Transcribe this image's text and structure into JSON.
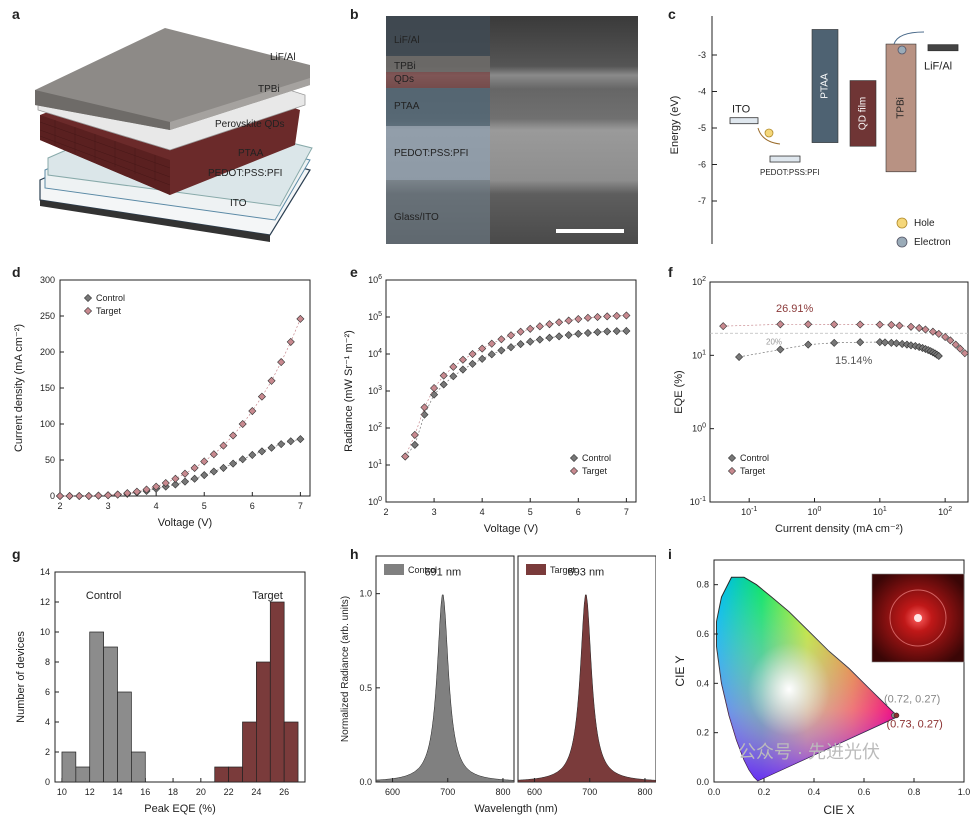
{
  "panel_letters": [
    "a",
    "b",
    "c",
    "d",
    "e",
    "f",
    "g",
    "h",
    "i"
  ],
  "panel_a": {
    "layers": [
      "LiF/Al",
      "TPBi",
      "Perovskite QDs",
      "PTAA",
      "PEDOT:PSS:PFI",
      "ITO"
    ],
    "colors": {
      "lif": "#8d8a87",
      "tpbi": "#e6e6e6",
      "perovskite": "#6b2a2a",
      "ptaa": "#dde8ea",
      "pedot": "#eef2f3",
      "ito": "#ffffff"
    }
  },
  "panel_b": {
    "layers": [
      "LiF/Al",
      "TPBi",
      "QDs",
      "PTAA",
      "PEDOT:PSS:PFI",
      "Glass/ITO"
    ]
  },
  "panel_c": {
    "ylabel": "Energy (eV)",
    "yticks": [
      "-3",
      "-4",
      "-5",
      "-6",
      "-7"
    ],
    "levels": [
      {
        "name": "ITO",
        "top": -4.8,
        "bottom": -4.8,
        "color": "#dfe7ee"
      },
      {
        "name": "PEDOT:PSS:PFI",
        "top": -5.85,
        "bottom": -5.85,
        "color": "#dfe7ee"
      },
      {
        "name": "PTAA",
        "top": -2.3,
        "bottom": -5.4,
        "color": "#4e6272"
      },
      {
        "name": "QD film",
        "top": -3.7,
        "bottom": -5.5,
        "color": "#6f3535"
      },
      {
        "name": "TPBi",
        "top": -2.7,
        "bottom": -6.2,
        "color": "#b89283"
      },
      {
        "name": "LiF/Al",
        "top": -2.8,
        "bottom": -2.8,
        "color": "#444444"
      }
    ],
    "legend": [
      {
        "label": "Hole",
        "color": "#f5d77a"
      },
      {
        "label": "Electron",
        "color": "#9aabb8"
      }
    ]
  },
  "panel_d": {
    "chart_data": {
      "type": "scatter",
      "xlabel": "Voltage (V)",
      "ylabel": "Current density (mA cm⁻²)",
      "xlim": [
        2,
        7.2
      ],
      "ylim": [
        0,
        300
      ],
      "xticks": [
        2,
        3,
        4,
        5,
        6,
        7
      ],
      "yticks": [
        0,
        50,
        100,
        150,
        200,
        250,
        300
      ],
      "series": [
        {
          "name": "Control",
          "color": "#777777",
          "x": [
            2.0,
            2.2,
            2.4,
            2.6,
            2.8,
            3.0,
            3.2,
            3.4,
            3.6,
            3.8,
            4.0,
            4.2,
            4.4,
            4.6,
            4.8,
            5.0,
            5.2,
            5.4,
            5.6,
            5.8,
            6.0,
            6.2,
            6.4,
            6.6,
            6.8,
            7.0
          ],
          "y": [
            0,
            0,
            0,
            0,
            0.5,
            1,
            2,
            3,
            5,
            7,
            10,
            13,
            16,
            20,
            24,
            29,
            34,
            39,
            45,
            51,
            57,
            62,
            67,
            72,
            76,
            79
          ]
        },
        {
          "name": "Target",
          "color": "#c8898f",
          "x": [
            2.0,
            2.2,
            2.4,
            2.6,
            2.8,
            3.0,
            3.2,
            3.4,
            3.6,
            3.8,
            4.0,
            4.2,
            4.4,
            4.6,
            4.8,
            5.0,
            5.2,
            5.4,
            5.6,
            5.8,
            6.0,
            6.2,
            6.4,
            6.6,
            6.8,
            7.0
          ],
          "y": [
            0,
            0,
            0,
            0,
            0.5,
            1,
            2,
            4,
            6,
            9,
            13,
            18,
            24,
            31,
            39,
            48,
            58,
            70,
            84,
            100,
            118,
            138,
            160,
            186,
            214,
            246
          ]
        }
      ]
    }
  },
  "panel_e": {
    "chart_data": {
      "type": "scatter",
      "xlabel": "Voltage (V)",
      "ylabel": "Radiance (mW Sr⁻¹ m⁻²)",
      "xlim": [
        2,
        7.2
      ],
      "ylim_log10": [
        0,
        6
      ],
      "yscale": "log",
      "xticks": [
        2,
        3,
        4,
        5,
        6,
        7
      ],
      "series": [
        {
          "name": "Control",
          "color": "#777777",
          "x": [
            2.4,
            2.6,
            2.8,
            3.0,
            3.2,
            3.4,
            3.6,
            3.8,
            4.0,
            4.2,
            4.4,
            4.6,
            4.8,
            5.0,
            5.2,
            5.4,
            5.6,
            5.8,
            6.0,
            6.2,
            6.4,
            6.6,
            6.8,
            7.0
          ],
          "y": [
            17,
            35,
            230,
            800,
            1500,
            2500,
            3800,
            5400,
            7400,
            9800,
            12500,
            15300,
            18500,
            21500,
            24500,
            27500,
            30000,
            32500,
            35000,
            37000,
            39000,
            40500,
            41500,
            42000
          ]
        },
        {
          "name": "Target",
          "color": "#c8898f",
          "x": [
            2.4,
            2.6,
            2.8,
            3.0,
            3.2,
            3.4,
            3.6,
            3.8,
            4.0,
            4.2,
            4.4,
            4.6,
            4.8,
            5.0,
            5.2,
            5.4,
            5.6,
            5.8,
            6.0,
            6.2,
            6.4,
            6.6,
            6.8,
            7.0
          ],
          "y": [
            17,
            65,
            360,
            1200,
            2600,
            4500,
            7000,
            10000,
            14000,
            19000,
            25000,
            32000,
            40000,
            48000,
            56000,
            64000,
            72000,
            80000,
            88000,
            95000,
            100000,
            104000,
            107000,
            110000
          ]
        }
      ]
    }
  },
  "panel_f": {
    "chart_data": {
      "type": "scatter",
      "xlabel": "Current density (mA cm⁻²)",
      "ylabel": "EQE (%)",
      "xscale": "log",
      "yscale": "log",
      "xlim_log10": [
        -1.6,
        2.35
      ],
      "ylim_log10": [
        -1,
        2
      ],
      "reference_line": "20%",
      "annotations": [
        "26.91%",
        "15.14%"
      ],
      "series": [
        {
          "name": "Control",
          "color": "#777777",
          "x": [
            0.07,
            0.3,
            0.8,
            2,
            5,
            10,
            12,
            15,
            18,
            22,
            26,
            30,
            35,
            40,
            45,
            50,
            55,
            60,
            65,
            70,
            75,
            80
          ],
          "y": [
            9.5,
            12,
            14,
            14.8,
            15.1,
            15.14,
            15.0,
            14.8,
            14.6,
            14.3,
            14.0,
            13.7,
            13.4,
            13.0,
            12.6,
            12.2,
            11.8,
            11.4,
            11.0,
            10.6,
            10.2,
            9.8
          ]
        },
        {
          "name": "Target",
          "color": "#c8898f",
          "x": [
            0.04,
            0.3,
            0.8,
            2,
            5,
            10,
            15,
            20,
            30,
            40,
            50,
            65,
            80,
            100,
            120,
            145,
            170,
            200
          ],
          "y": [
            25,
            26.5,
            26.5,
            26.4,
            26.3,
            26.2,
            26.0,
            25.4,
            24.5,
            23.6,
            22.5,
            21.0,
            19.6,
            17.8,
            16.0,
            14.0,
            12.3,
            10.7
          ]
        }
      ]
    }
  },
  "panel_g": {
    "chart_data": {
      "type": "bar",
      "xlabel": "Peak EQE (%)",
      "ylabel": "Number of devices",
      "xlim": [
        9.5,
        27.5
      ],
      "ylim": [
        0,
        14
      ],
      "xticks": [
        10,
        12,
        14,
        16,
        18,
        20,
        22,
        24,
        26
      ],
      "yticks": [
        0,
        2,
        4,
        6,
        8,
        10,
        12,
        14
      ],
      "bin_width": 1,
      "series": [
        {
          "name": "Control",
          "color": "#8c8c8c",
          "x": [
            10.5,
            11.5,
            12.5,
            13.5,
            14.5,
            15.5
          ],
          "values": [
            2,
            1,
            10,
            9,
            6,
            2
          ]
        },
        {
          "name": "Target",
          "color": "#7a3b3b",
          "x": [
            21.5,
            22.5,
            23.5,
            24.5,
            25.5,
            26.5
          ],
          "values": [
            1,
            1,
            4,
            8,
            12,
            4
          ]
        }
      ]
    }
  },
  "panel_h": {
    "chart_data": {
      "type": "area",
      "xlabel": "Wavelength (nm)",
      "ylabel": "Normalized Radiance (arb. units)",
      "ylim": [
        0,
        1.2
      ],
      "yticks": [
        0.0,
        0.5,
        1.0
      ],
      "subplots": [
        {
          "name": "Control",
          "color": "#808080",
          "peak": 691,
          "peak_label": "691 nm",
          "xlim": [
            570,
            820
          ],
          "xticks": [
            600,
            700,
            800
          ]
        },
        {
          "name": "Target",
          "color": "#7a3b3b",
          "peak": 693,
          "peak_label": "693 nm",
          "xlim": [
            570,
            820
          ],
          "xticks": [
            600,
            700,
            800
          ]
        }
      ]
    }
  },
  "panel_i": {
    "chart_data": {
      "type": "scatter",
      "xlabel": "CIE X",
      "ylabel": "CIE Y",
      "xlim": [
        0,
        1.0
      ],
      "ylim": [
        0,
        0.9
      ],
      "xticks": [
        0.0,
        0.2,
        0.4,
        0.6,
        0.8,
        1.0
      ],
      "yticks": [
        0.0,
        0.2,
        0.4,
        0.6,
        0.8
      ],
      "points": [
        {
          "label": "(0.72, 0.27)",
          "x": 0.72,
          "y": 0.27,
          "color": "#888888"
        },
        {
          "label": "(0.73, 0.27)",
          "x": 0.73,
          "y": 0.27,
          "color": "#8b3030"
        }
      ]
    },
    "watermark": "公众号 · 先进光伏"
  }
}
